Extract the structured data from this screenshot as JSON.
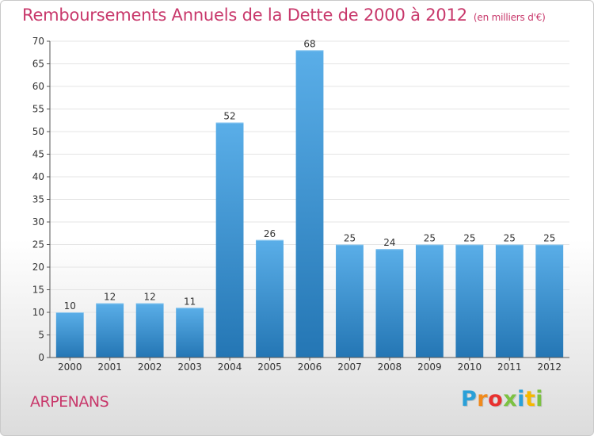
{
  "title": "Remboursements Annuels de la Dette de 2000 à 2012",
  "unit_note": "(en milliers d'€)",
  "place_name": "ARPENANS",
  "logo_text": "Proxiti",
  "logo_colors": [
    "#2aa0d8",
    "#f08a1c",
    "#e8312f",
    "#7cc242",
    "#2aa0d8",
    "#f5b800",
    "#7cc242"
  ],
  "colors": {
    "title": "#c8386b",
    "bar_top": "#5aaee8",
    "bar_bottom": "#2476b4",
    "grid": "#e4e4e4"
  },
  "chart_data": {
    "type": "bar",
    "categories": [
      "2000",
      "2001",
      "2002",
      "2003",
      "2004",
      "2005",
      "2006",
      "2007",
      "2008",
      "2009",
      "2010",
      "2011",
      "2012"
    ],
    "values": [
      10,
      12,
      12,
      11,
      52,
      26,
      68,
      25,
      24,
      25,
      25,
      25,
      25
    ],
    "data_labels": [
      "10",
      "12",
      "12",
      "11",
      "52",
      "26",
      "68",
      "25",
      "24",
      "25",
      "25",
      "25",
      "25"
    ],
    "ylim": [
      0,
      70
    ],
    "yticks": [
      0,
      5,
      10,
      15,
      20,
      25,
      30,
      35,
      40,
      45,
      50,
      55,
      60,
      65,
      70
    ],
    "grid": true,
    "legend": "none"
  }
}
